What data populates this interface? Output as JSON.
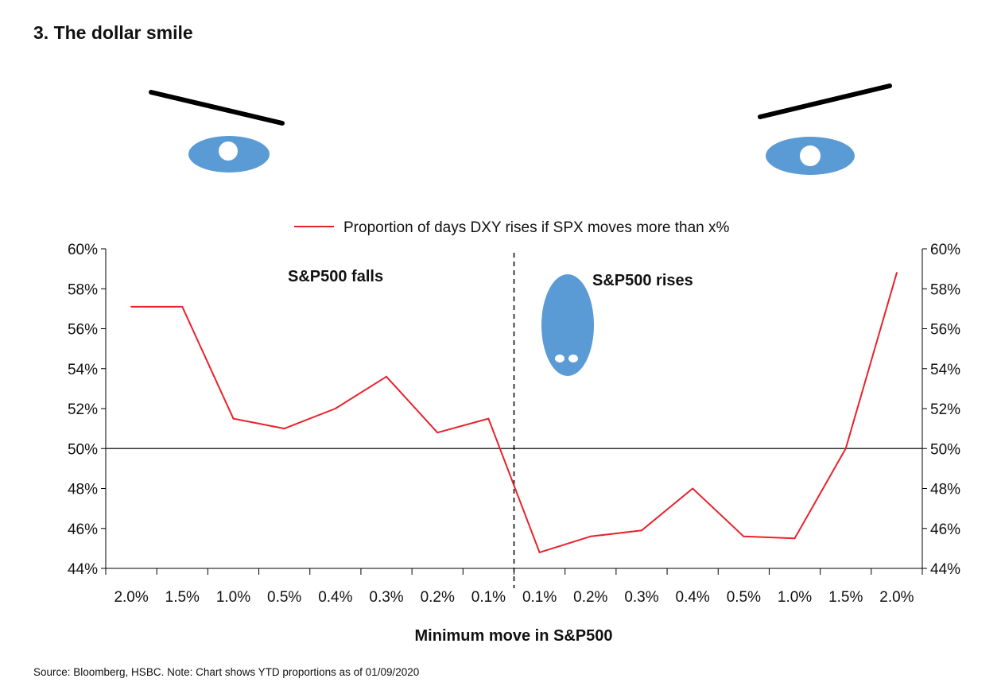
{
  "title": "3. The dollar smile",
  "source": "Source: Bloomberg, HSBC. Note: Chart shows YTD proportions as of 01/09/2020",
  "chart_data": {
    "type": "line",
    "title": "3. The dollar smile",
    "xlabel": "Minimum move in S&P500",
    "ylabel": "",
    "categories": [
      "2.0%",
      "1.5%",
      "1.0%",
      "0.5%",
      "0.4%",
      "0.3%",
      "0.2%",
      "0.1%",
      "0.1%",
      "0.2%",
      "0.3%",
      "0.4%",
      "0.5%",
      "1.0%",
      "1.5%",
      "2.0%"
    ],
    "series": [
      {
        "name": "Proportion of days DXY rises if SPX moves more than x%",
        "color": "#e8222b",
        "values": [
          57.1,
          57.1,
          51.5,
          51.0,
          52.0,
          53.6,
          50.8,
          51.5,
          44.8,
          45.6,
          45.9,
          48.0,
          45.6,
          45.5,
          50.0,
          58.8
        ]
      }
    ],
    "ylim": [
      44,
      60
    ],
    "yticks": [
      "44%",
      "46%",
      "48%",
      "50%",
      "52%",
      "54%",
      "56%",
      "58%",
      "60%"
    ],
    "reference_line": 50,
    "annotations": [
      "S&P500 falls",
      "S&P500 rises"
    ],
    "legend": "top-center"
  },
  "decoration": {
    "eye_color": "#5b9bd5",
    "brow_color": "#000000"
  }
}
